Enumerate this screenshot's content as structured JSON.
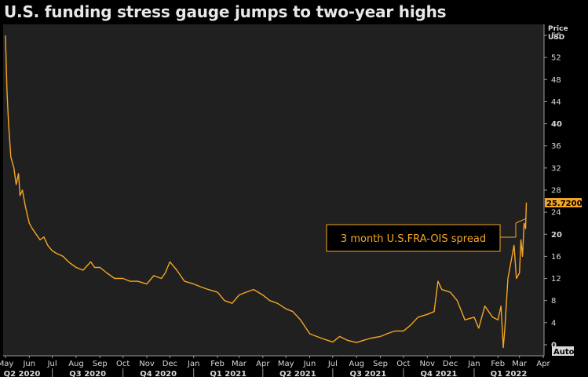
{
  "title": "U.S. funding stress gauge jumps to two-year highs",
  "colors": {
    "background": "#000000",
    "plot_background": "#202020",
    "series": "#f5a623",
    "text": "#d9d9d9"
  },
  "auto_button_label": "Auto",
  "chart_data": {
    "type": "line",
    "title": "U.S. funding stress gauge jumps to two-year highs",
    "ylabel": "Price\nUSD",
    "ylabel_lines": [
      "Price",
      "USD"
    ],
    "yaxis_side": "right",
    "ylim": [
      -2,
      58
    ],
    "yticks": [
      0,
      4,
      8,
      12,
      16,
      20,
      24,
      28,
      32,
      36,
      40,
      44,
      48,
      52,
      56
    ],
    "grid": false,
    "x_month_labels": [
      "May",
      "Jun",
      "Jul",
      "Aug",
      "Sep",
      "Oct",
      "Nov",
      "Dec",
      "Jan",
      "Feb",
      "Mar",
      "Apr",
      "May",
      "Jun",
      "Jul",
      "Aug",
      "Sep",
      "Oct",
      "Nov",
      "Dec",
      "Jan",
      "Feb",
      "Mar",
      "Apr"
    ],
    "x_quarter_labels": [
      "Q2 2020",
      "Q3 2020",
      "Q4 2020",
      "Q1 2021",
      "Q2 2021",
      "Q3 2021",
      "Q4 2021",
      "Q1 2022"
    ],
    "annotation": "3 month U.S.FRA-OIS spread",
    "last_value_label": "25.7200",
    "last_value": 25.72,
    "series": [
      {
        "name": "3 month U.S.FRA-OIS spread",
        "x": [
          "2020-05-01",
          "2020-05-03",
          "2020-05-05",
          "2020-05-08",
          "2020-05-12",
          "2020-05-15",
          "2020-05-18",
          "2020-05-20",
          "2020-05-23",
          "2020-05-27",
          "2020-06-01",
          "2020-06-05",
          "2020-06-10",
          "2020-06-15",
          "2020-06-20",
          "2020-06-25",
          "2020-07-01",
          "2020-07-07",
          "2020-07-15",
          "2020-07-22",
          "2020-08-01",
          "2020-08-10",
          "2020-08-20",
          "2020-08-25",
          "2020-09-01",
          "2020-09-10",
          "2020-09-20",
          "2020-10-01",
          "2020-10-10",
          "2020-10-20",
          "2020-11-01",
          "2020-11-10",
          "2020-11-20",
          "2020-11-25",
          "2020-12-01",
          "2020-12-10",
          "2020-12-20",
          "2021-01-01",
          "2021-01-10",
          "2021-01-20",
          "2021-02-01",
          "2021-02-10",
          "2021-02-20",
          "2021-03-01",
          "2021-03-10",
          "2021-03-20",
          "2021-04-01",
          "2021-04-10",
          "2021-04-20",
          "2021-05-01",
          "2021-05-10",
          "2021-05-20",
          "2021-06-01",
          "2021-06-10",
          "2021-06-20",
          "2021-07-01",
          "2021-07-10",
          "2021-07-20",
          "2021-08-01",
          "2021-08-10",
          "2021-08-20",
          "2021-09-01",
          "2021-09-10",
          "2021-09-20",
          "2021-10-01",
          "2021-10-10",
          "2021-10-20",
          "2021-11-01",
          "2021-11-10",
          "2021-11-15",
          "2021-11-20",
          "2021-12-01",
          "2021-12-10",
          "2021-12-20",
          "2022-01-01",
          "2022-01-07",
          "2022-01-15",
          "2022-01-20",
          "2022-01-25",
          "2022-02-01",
          "2022-02-05",
          "2022-02-08",
          "2022-02-10",
          "2022-02-14",
          "2022-02-18",
          "2022-02-22",
          "2022-02-25",
          "2022-03-01",
          "2022-03-03",
          "2022-03-05",
          "2022-03-07",
          "2022-03-09",
          "2022-03-10"
        ],
        "values": [
          56,
          46,
          40,
          34,
          32,
          29,
          31,
          27,
          28,
          25,
          22,
          21,
          20,
          19,
          19.5,
          18,
          17,
          16.5,
          16,
          15,
          14,
          13.5,
          15,
          14,
          14,
          13,
          12,
          12,
          11.5,
          11.5,
          11,
          12.5,
          12,
          13,
          15,
          13.5,
          11.5,
          11,
          10.5,
          10,
          9.5,
          8,
          7.5,
          9,
          9.5,
          10,
          9,
          8,
          7.5,
          6.5,
          6,
          4.5,
          2,
          1.5,
          1,
          0.5,
          1.5,
          0.8,
          0.4,
          0.8,
          1.2,
          1.5,
          2,
          2.5,
          2.5,
          3.5,
          5,
          5.5,
          6,
          11.5,
          10,
          9.5,
          8,
          4.5,
          5,
          3,
          7,
          6,
          5,
          4.5,
          7,
          -0.5,
          3,
          12,
          15,
          18,
          12,
          13,
          19,
          16,
          22,
          21,
          25.72
        ]
      }
    ]
  }
}
